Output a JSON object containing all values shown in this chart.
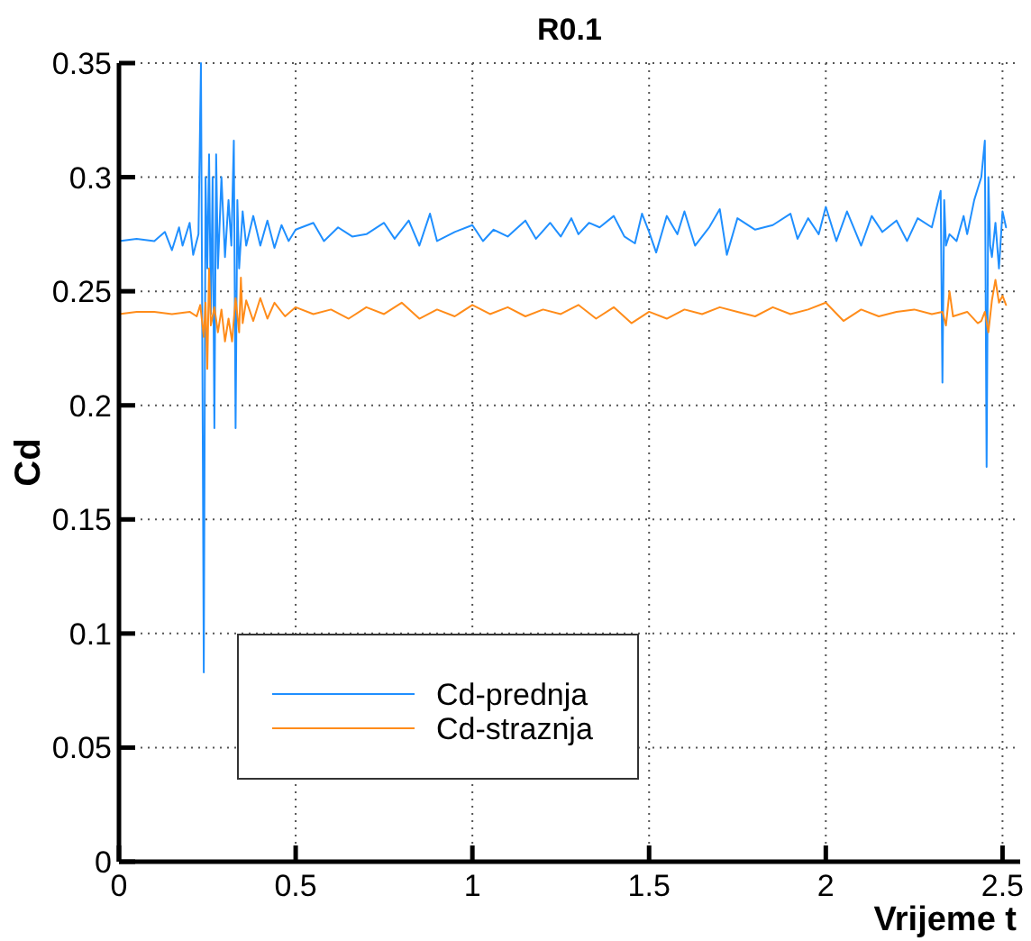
{
  "chart_data": {
    "type": "line",
    "title": "R0.1",
    "xlabel": "Vrijeme t",
    "ylabel": "Cd",
    "xlim": [
      0,
      2.55
    ],
    "xticks": [
      0,
      0.5,
      1,
      1.5,
      2,
      2.5
    ],
    "ylim": [
      0,
      0.35
    ],
    "yticks": [
      0,
      0.05,
      0.1,
      0.15,
      0.2,
      0.25,
      0.3,
      0.35
    ],
    "grid": true,
    "legend": "bottom left",
    "line_style": "solid",
    "marker": "none",
    "series": [
      {
        "name": "Cd-prednja",
        "color": "#1f8fff",
        "x": [
          0,
          0.05,
          0.1,
          0.13,
          0.15,
          0.17,
          0.18,
          0.2,
          0.21,
          0.225,
          0.232,
          0.237,
          0.24,
          0.245,
          0.25,
          0.255,
          0.26,
          0.265,
          0.27,
          0.275,
          0.28,
          0.29,
          0.3,
          0.31,
          0.318,
          0.325,
          0.33,
          0.335,
          0.34,
          0.35,
          0.36,
          0.38,
          0.4,
          0.42,
          0.44,
          0.46,
          0.48,
          0.5,
          0.55,
          0.58,
          0.62,
          0.66,
          0.7,
          0.75,
          0.78,
          0.82,
          0.85,
          0.88,
          0.9,
          0.95,
          1.0,
          1.03,
          1.06,
          1.1,
          1.15,
          1.18,
          1.22,
          1.25,
          1.28,
          1.3,
          1.33,
          1.36,
          1.4,
          1.43,
          1.46,
          1.48,
          1.5,
          1.52,
          1.55,
          1.58,
          1.6,
          1.63,
          1.67,
          1.7,
          1.72,
          1.75,
          1.8,
          1.85,
          1.9,
          1.92,
          1.95,
          1.98,
          2.0,
          2.03,
          2.06,
          2.1,
          2.13,
          2.16,
          2.2,
          2.23,
          2.26,
          2.3,
          2.325,
          2.33,
          2.335,
          2.34,
          2.35,
          2.37,
          2.39,
          2.4,
          2.42,
          2.44,
          2.45,
          2.455,
          2.46,
          2.465,
          2.47,
          2.48,
          2.49,
          2.5,
          2.51
        ],
        "values": [
          0.272,
          0.273,
          0.272,
          0.276,
          0.268,
          0.278,
          0.27,
          0.28,
          0.266,
          0.275,
          0.35,
          0.19,
          0.083,
          0.3,
          0.26,
          0.31,
          0.24,
          0.3,
          0.19,
          0.31,
          0.26,
          0.3,
          0.265,
          0.29,
          0.27,
          0.316,
          0.19,
          0.29,
          0.26,
          0.285,
          0.27,
          0.283,
          0.27,
          0.281,
          0.269,
          0.279,
          0.272,
          0.277,
          0.28,
          0.272,
          0.278,
          0.274,
          0.275,
          0.28,
          0.273,
          0.281,
          0.27,
          0.284,
          0.272,
          0.276,
          0.279,
          0.272,
          0.277,
          0.274,
          0.281,
          0.273,
          0.28,
          0.274,
          0.282,
          0.275,
          0.28,
          0.278,
          0.283,
          0.274,
          0.271,
          0.284,
          0.276,
          0.267,
          0.283,
          0.275,
          0.285,
          0.27,
          0.278,
          0.286,
          0.266,
          0.282,
          0.277,
          0.279,
          0.284,
          0.273,
          0.282,
          0.275,
          0.287,
          0.272,
          0.285,
          0.27,
          0.283,
          0.276,
          0.281,
          0.272,
          0.282,
          0.278,
          0.294,
          0.21,
          0.29,
          0.27,
          0.275,
          0.272,
          0.283,
          0.275,
          0.29,
          0.3,
          0.316,
          0.173,
          0.3,
          0.27,
          0.265,
          0.28,
          0.26,
          0.285,
          0.278
        ]
      },
      {
        "name": "Cd-straznja",
        "color": "#ff8c1a",
        "x": [
          0,
          0.05,
          0.1,
          0.15,
          0.2,
          0.22,
          0.23,
          0.24,
          0.245,
          0.25,
          0.255,
          0.26,
          0.27,
          0.28,
          0.29,
          0.3,
          0.31,
          0.32,
          0.33,
          0.34,
          0.345,
          0.35,
          0.36,
          0.38,
          0.4,
          0.42,
          0.44,
          0.47,
          0.5,
          0.55,
          0.6,
          0.65,
          0.7,
          0.75,
          0.8,
          0.85,
          0.9,
          0.95,
          1.0,
          1.05,
          1.1,
          1.15,
          1.2,
          1.25,
          1.3,
          1.35,
          1.4,
          1.45,
          1.5,
          1.55,
          1.6,
          1.65,
          1.7,
          1.75,
          1.8,
          1.85,
          1.9,
          1.95,
          2.0,
          2.05,
          2.1,
          2.15,
          2.2,
          2.25,
          2.3,
          2.33,
          2.34,
          2.35,
          2.36,
          2.4,
          2.43,
          2.44,
          2.45,
          2.46,
          2.47,
          2.48,
          2.49,
          2.5,
          2.51
        ],
        "values": [
          0.24,
          0.241,
          0.241,
          0.24,
          0.241,
          0.239,
          0.244,
          0.23,
          0.245,
          0.216,
          0.26,
          0.235,
          0.243,
          0.232,
          0.242,
          0.228,
          0.238,
          0.228,
          0.247,
          0.232,
          0.256,
          0.236,
          0.246,
          0.237,
          0.247,
          0.238,
          0.245,
          0.239,
          0.243,
          0.24,
          0.242,
          0.238,
          0.243,
          0.24,
          0.245,
          0.238,
          0.242,
          0.239,
          0.244,
          0.24,
          0.243,
          0.239,
          0.242,
          0.24,
          0.244,
          0.238,
          0.243,
          0.236,
          0.241,
          0.238,
          0.242,
          0.24,
          0.243,
          0.241,
          0.239,
          0.243,
          0.24,
          0.242,
          0.245,
          0.237,
          0.242,
          0.239,
          0.241,
          0.242,
          0.24,
          0.241,
          0.235,
          0.25,
          0.239,
          0.241,
          0.236,
          0.237,
          0.241,
          0.232,
          0.246,
          0.255,
          0.245,
          0.248,
          0.244
        ]
      }
    ]
  }
}
